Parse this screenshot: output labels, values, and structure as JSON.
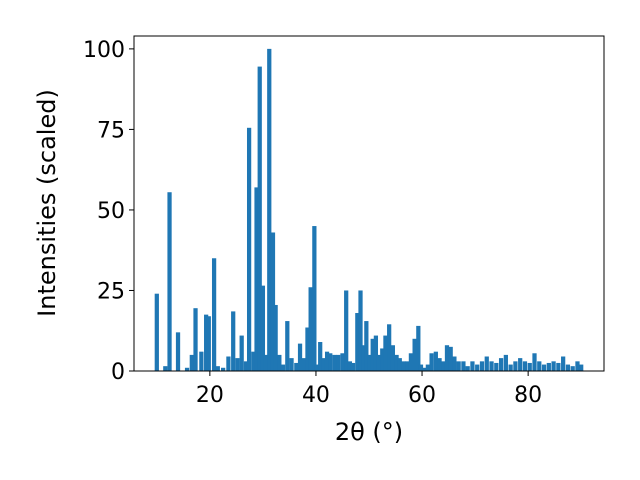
{
  "chart_data": {
    "type": "bar",
    "title": "",
    "xlabel": "2θ (°)",
    "ylabel": "Intensities (scaled)",
    "xlim": [
      5.7,
      94.3
    ],
    "ylim": [
      0,
      104
    ],
    "xticks": [
      20,
      40,
      60,
      80
    ],
    "yticks": [
      0,
      25,
      50,
      75,
      100
    ],
    "bar_color": "#1f77b4",
    "grid": false,
    "legend": "none",
    "x": [
      10.0,
      11.6,
      12.4,
      14.0,
      15.7,
      16.6,
      17.3,
      18.4,
      19.3,
      19.8,
      20.8,
      21.5,
      22.5,
      23.5,
      24.4,
      25.2,
      26.0,
      26.8,
      27.4,
      28.2,
      28.8,
      29.4,
      30.0,
      30.6,
      31.2,
      31.9,
      32.4,
      33.1,
      33.8,
      34.6,
      35.4,
      36.3,
      37.0,
      37.7,
      38.4,
      39.0,
      39.7,
      40.2,
      40.8,
      41.5,
      42.1,
      42.7,
      43.5,
      44.2,
      45.0,
      45.7,
      46.4,
      47.0,
      47.8,
      48.4,
      49.0,
      49.5,
      50.1,
      50.7,
      51.3,
      51.9,
      52.5,
      53.1,
      53.8,
      54.5,
      55.2,
      55.8,
      56.5,
      57.2,
      57.9,
      58.6,
      59.3,
      59.8,
      60.4,
      61.1,
      61.8,
      62.6,
      63.3,
      64.0,
      64.7,
      65.4,
      66.1,
      66.9,
      67.8,
      68.6,
      69.5,
      70.4,
      71.3,
      72.2,
      73.1,
      74.0,
      74.9,
      75.8,
      76.7,
      77.6,
      78.5,
      79.4,
      80.3,
      81.2,
      82.1,
      83.0,
      83.9,
      84.8,
      85.7,
      86.6,
      87.5,
      88.4,
      89.3,
      90.0
    ],
    "values": [
      24,
      1.5,
      55.5,
      12,
      1,
      5,
      19.5,
      6,
      17.5,
      17,
      35,
      1.5,
      1,
      4.5,
      18.5,
      4,
      11,
      3,
      75.5,
      6,
      57,
      94.5,
      26.5,
      5,
      100,
      43,
      20.5,
      5,
      2,
      15.5,
      4,
      2.5,
      8.5,
      4,
      13.5,
      26,
      45,
      2,
      9,
      4,
      6,
      5.5,
      5,
      5,
      5.5,
      25,
      3,
      2.5,
      18,
      25,
      8,
      15.5,
      5,
      10,
      11,
      5,
      7,
      11,
      14.5,
      8,
      5,
      4,
      3,
      3,
      5.5,
      10,
      14,
      2,
      1,
      2,
      5.5,
      6,
      4,
      3,
      8,
      7.5,
      4.5,
      3,
      3,
      1.5,
      3,
      2,
      3,
      4.5,
      3,
      2.5,
      4,
      5,
      2,
      3,
      4,
      3,
      2.5,
      5.5,
      3,
      2,
      2.5,
      3,
      2.5,
      4.5,
      2,
      1.5,
      3,
      2
    ]
  }
}
